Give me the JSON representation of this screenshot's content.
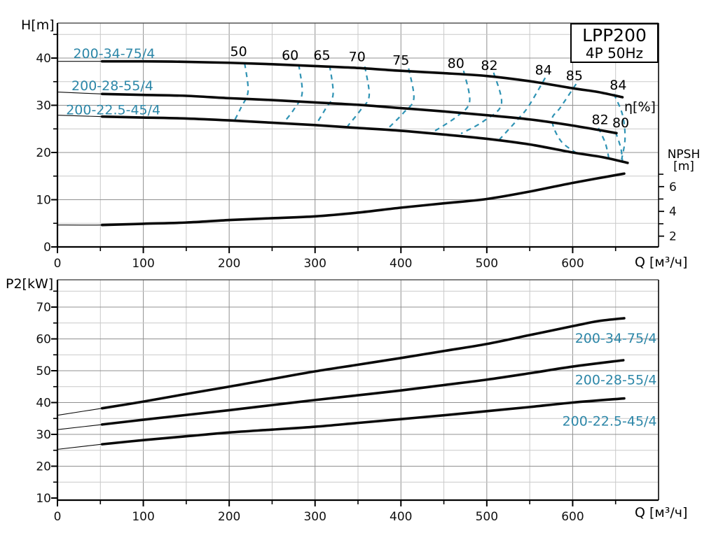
{
  "title_box": {
    "line1": "LPP200",
    "line2": "4P  50Hz"
  },
  "labels": {
    "h_axis": "H[m]",
    "q_axis_top": "Q [м³/ч]",
    "q_axis_bottom": "Q [м³/ч]",
    "eta": "η[%]",
    "npsh_line1": "NPSH",
    "npsh_line2": "[m]",
    "p2_axis": "P2[kW]"
  },
  "colors": {
    "curve": "#0a0a0a",
    "teal_label": "#2d87a8",
    "eta_dash": "#2f93b4",
    "grid_major": "#909090",
    "grid_minor": "#c9c9c9",
    "frame_light": "#555555",
    "frame_dark": "#000000",
    "tick_text": "#111111"
  },
  "chart_data": [
    {
      "id": "head-npsh",
      "type": "line",
      "title": "LPP200 4P 50Hz — H/Q curves with iso-efficiency contours and NPSH",
      "x_axis": {
        "label": "Q [м³/ч]",
        "min": 0,
        "max": 703,
        "labeled_ticks": [
          0,
          100,
          200,
          300,
          400,
          500,
          600
        ],
        "minor_ticks": [
          50,
          150,
          250,
          350,
          450,
          550,
          650
        ],
        "grid": true
      },
      "y_axis": {
        "label": "H[m]",
        "min": 0,
        "max": 47.4,
        "labeled_ticks": [
          0,
          10,
          20,
          30,
          40
        ],
        "minor_ticks": [
          5,
          15,
          25,
          35,
          45
        ],
        "grid": true
      },
      "y2_axis": {
        "label": "NPSH [m]",
        "labeled_ticks": [
          2,
          4,
          6
        ],
        "minor_ticks": [
          3,
          5,
          7
        ]
      },
      "operating_range_start_q": 52,
      "series": [
        {
          "name": "200-34-75/4",
          "label_pos": [
            66,
            40.9
          ],
          "points": [
            [
              0,
              39.3
            ],
            [
              52,
              39.3
            ],
            [
              100,
              39.3
            ],
            [
              150,
              39.2
            ],
            [
              200,
              39.0
            ],
            [
              250,
              38.7
            ],
            [
              300,
              38.3
            ],
            [
              350,
              37.9
            ],
            [
              400,
              37.3
            ],
            [
              450,
              36.8
            ],
            [
              500,
              36.2
            ],
            [
              550,
              35.1
            ],
            [
              600,
              33.6
            ],
            [
              630,
              32.8
            ],
            [
              658,
              31.7
            ]
          ]
        },
        {
          "name": "200-28-55/4",
          "label_pos": [
            64,
            34.1
          ],
          "points": [
            [
              0,
              32.8
            ],
            [
              52,
              32.4
            ],
            [
              100,
              32.2
            ],
            [
              150,
              32.0
            ],
            [
              200,
              31.5
            ],
            [
              250,
              31.1
            ],
            [
              300,
              30.6
            ],
            [
              350,
              30.1
            ],
            [
              400,
              29.4
            ],
            [
              450,
              28.7
            ],
            [
              500,
              27.9
            ],
            [
              550,
              27.0
            ],
            [
              600,
              25.7
            ],
            [
              651,
              24.1
            ]
          ]
        },
        {
          "name": "200-22.5-45/4",
          "label_pos": [
            65,
            29.0
          ],
          "points": [
            [
              0,
              27.9
            ],
            [
              52,
              27.6
            ],
            [
              100,
              27.4
            ],
            [
              150,
              27.2
            ],
            [
              200,
              26.8
            ],
            [
              250,
              26.3
            ],
            [
              300,
              25.8
            ],
            [
              350,
              25.2
            ],
            [
              400,
              24.6
            ],
            [
              450,
              23.8
            ],
            [
              500,
              22.9
            ],
            [
              550,
              21.7
            ],
            [
              600,
              20.0
            ],
            [
              635,
              19.0
            ],
            [
              664,
              17.8
            ]
          ]
        }
      ],
      "npsh_series": {
        "name": "NPSH",
        "points": [
          [
            0,
            2.9
          ],
          [
            52,
            2.9
          ],
          [
            100,
            3.0
          ],
          [
            150,
            3.1
          ],
          [
            200,
            3.3
          ],
          [
            250,
            3.45
          ],
          [
            300,
            3.6
          ],
          [
            350,
            3.9
          ],
          [
            400,
            4.3
          ],
          [
            450,
            4.65
          ],
          [
            500,
            5.0
          ],
          [
            550,
            5.6
          ],
          [
            600,
            6.3
          ],
          [
            660,
            7.05
          ]
        ]
      },
      "efficiency_unit_label": "η[%]",
      "efficiency_contours": [
        {
          "label": "50",
          "label_pos": [
            211,
            41.3
          ],
          "points": [
            [
              218,
              38.9
            ],
            [
              222,
              33.0
            ],
            [
              214,
              29.6
            ],
            [
              206,
              26.7
            ]
          ]
        },
        {
          "label": "60",
          "label_pos": [
            271,
            40.5
          ],
          "points": [
            [
              281,
              38.6
            ],
            [
              285,
              32.6
            ],
            [
              276,
              29.3
            ],
            [
              263,
              26.2
            ]
          ]
        },
        {
          "label": "65",
          "label_pos": [
            308,
            40.5
          ],
          "points": [
            [
              317,
              38.4
            ],
            [
              321,
              32.3
            ],
            [
              312,
              29.2
            ],
            [
              301,
              25.9
            ]
          ]
        },
        {
          "label": "70",
          "label_pos": [
            349,
            40.2
          ],
          "points": [
            [
              358,
              38.2
            ],
            [
              363,
              32.0
            ],
            [
              353,
              29.0
            ],
            [
              338,
              25.6
            ]
          ]
        },
        {
          "label": "75",
          "label_pos": [
            400,
            39.5
          ],
          "points": [
            [
              409,
              37.8
            ],
            [
              415,
              31.4
            ],
            [
              403,
              28.4
            ],
            [
              385,
              25.1
            ]
          ]
        },
        {
          "label": "80",
          "label_pos": [
            464,
            38.8
          ],
          "points": [
            [
              473,
              37.3
            ],
            [
              480,
              30.8
            ],
            [
              465,
              27.6
            ],
            [
              438,
              24.4
            ]
          ]
        },
        {
          "label": "82",
          "label_pos": [
            503,
            38.4
          ],
          "points": [
            [
              508,
              36.9
            ],
            [
              517,
              30.2
            ],
            [
              496,
              26.6
            ],
            [
              470,
              24.0
            ]
          ]
        },
        {
          "label": "84",
          "label_pos": [
            566,
            37.4
          ],
          "points": [
            [
              568,
              35.8
            ],
            [
              549,
              29.9
            ],
            [
              537,
              27.2
            ],
            [
              515,
              22.8
            ]
          ]
        },
        {
          "label": "85",
          "label_pos": [
            602,
            36.2
          ],
          "points": [
            [
              604,
              34.5
            ],
            [
              586,
              29.6
            ],
            [
              576,
              26.9
            ],
            [
              586,
              22.5
            ],
            [
              605,
              19.8
            ]
          ]
        },
        {
          "label": "84",
          "label_pos": [
            653,
            34.2
          ],
          "points": [
            [
              648,
              32.4
            ],
            [
              658,
              28.0
            ],
            [
              661,
              23.0
            ],
            [
              657,
              18.5
            ]
          ]
        },
        {
          "label": "82",
          "label_pos": [
            632,
            26.9
          ],
          "points": [
            [
              630,
              25.2
            ],
            [
              638,
              22.0
            ],
            [
              642,
              18.9
            ]
          ]
        },
        {
          "label": "80",
          "label_pos": [
            656,
            26.2
          ],
          "points": [
            [
              650,
              24.3
            ],
            [
              656,
              21.0
            ],
            [
              658,
              18.2
            ]
          ]
        }
      ]
    },
    {
      "id": "power",
      "type": "line",
      "title": "P2/Q power curves",
      "x_axis": {
        "label": "Q [м³/ч]",
        "min": 0,
        "max": 703,
        "labeled_ticks": [
          0,
          100,
          200,
          300,
          400,
          500,
          600
        ],
        "minor_ticks": [
          50,
          150,
          250,
          350,
          450,
          550,
          650
        ],
        "grid": true
      },
      "y_axis": {
        "label": "P2[kW]",
        "min": 9.3,
        "max": 78.6,
        "labeled_ticks": [
          10,
          20,
          30,
          40,
          50,
          60,
          70
        ],
        "minor_ticks": [
          15,
          25,
          35,
          45,
          55,
          65,
          75
        ],
        "grid": true
      },
      "operating_range_start_q": 52,
      "series": [
        {
          "name": "200-34-75/4",
          "label_pos": [
            698,
            60.1
          ],
          "label_anchor": "end",
          "points": [
            [
              0,
              36.0
            ],
            [
              52,
              38.2
            ],
            [
              100,
              40.3
            ],
            [
              150,
              42.7
            ],
            [
              200,
              45.0
            ],
            [
              250,
              47.4
            ],
            [
              300,
              49.8
            ],
            [
              350,
              51.9
            ],
            [
              400,
              54.0
            ],
            [
              450,
              56.2
            ],
            [
              500,
              58.4
            ],
            [
              550,
              61.2
            ],
            [
              600,
              64.0
            ],
            [
              630,
              65.6
            ],
            [
              660,
              66.5
            ]
          ]
        },
        {
          "name": "200-28-55/4",
          "label_pos": [
            698,
            47.0
          ],
          "label_anchor": "end",
          "points": [
            [
              0,
              31.5
            ],
            [
              52,
              33.1
            ],
            [
              100,
              34.6
            ],
            [
              150,
              36.1
            ],
            [
              200,
              37.6
            ],
            [
              250,
              39.2
            ],
            [
              300,
              40.8
            ],
            [
              350,
              42.3
            ],
            [
              400,
              43.8
            ],
            [
              450,
              45.5
            ],
            [
              500,
              47.2
            ],
            [
              550,
              49.2
            ],
            [
              600,
              51.3
            ],
            [
              659,
              53.3
            ]
          ]
        },
        {
          "name": "200-22.5-45/4",
          "label_pos": [
            698,
            34.1
          ],
          "label_anchor": "end",
          "points": [
            [
              0,
              25.3
            ],
            [
              52,
              26.9
            ],
            [
              100,
              28.2
            ],
            [
              150,
              29.4
            ],
            [
              200,
              30.6
            ],
            [
              250,
              31.5
            ],
            [
              300,
              32.4
            ],
            [
              350,
              33.6
            ],
            [
              400,
              34.8
            ],
            [
              450,
              36.0
            ],
            [
              500,
              37.3
            ],
            [
              550,
              38.6
            ],
            [
              600,
              40.0
            ],
            [
              660,
              41.3
            ]
          ]
        }
      ]
    }
  ]
}
